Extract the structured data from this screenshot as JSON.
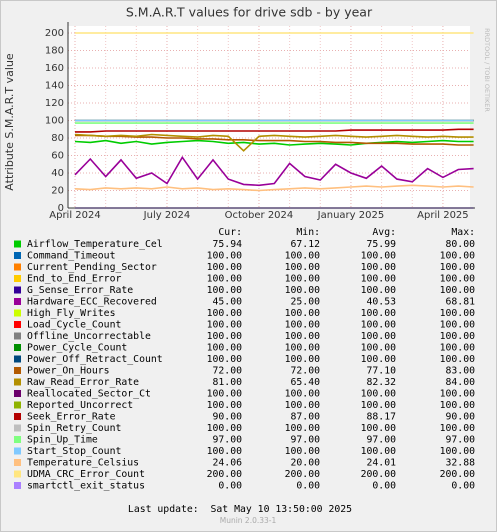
{
  "chart_data": {
    "type": "line",
    "title": "S.M.A.R.T values for drive sdb - by year",
    "y_label": "Attribute S.M.A.R.T value",
    "side_label": "RRDTOOL / TOBI OETIKER",
    "categories": [
      "April 2024",
      null,
      null,
      null,
      null,
      null,
      "July 2024",
      null,
      null,
      null,
      null,
      null,
      "October 2024",
      null,
      null,
      null,
      null,
      null,
      "January 2025",
      null,
      null,
      null,
      null,
      null,
      "April 2025",
      null,
      null
    ],
    "ylim": [
      0,
      208
    ],
    "yticks": [
      0,
      20,
      40,
      60,
      80,
      100,
      120,
      140,
      160,
      180,
      200
    ],
    "grid": true,
    "legend_columns": [
      "Cur:",
      "Min:",
      "Avg:",
      "Max:"
    ],
    "series": [
      {
        "name": "Airflow_Temperature_Cel",
        "color": "#00cc00",
        "stats": [
          "75.94",
          "67.12",
          "75.99",
          "80.00"
        ],
        "values": [
          76,
          75,
          77,
          74,
          76,
          73,
          75,
          76,
          77,
          76,
          74,
          75,
          73,
          74,
          72,
          73,
          74,
          73,
          72,
          74,
          75,
          76,
          75,
          76,
          77,
          76,
          76
        ]
      },
      {
        "name": "Command_Timeout",
        "color": "#0066b3",
        "stats": [
          "100.00",
          "100.00",
          "100.00",
          "100.00"
        ],
        "values": [
          100,
          100,
          100,
          100,
          100,
          100,
          100,
          100,
          100,
          100,
          100,
          100,
          100,
          100,
          100,
          100,
          100,
          100,
          100,
          100,
          100,
          100,
          100,
          100,
          100,
          100,
          100
        ]
      },
      {
        "name": "Current_Pending_Sector",
        "color": "#ff8000",
        "stats": [
          "100.00",
          "100.00",
          "100.00",
          "100.00"
        ],
        "values": [
          100,
          100,
          100,
          100,
          100,
          100,
          100,
          100,
          100,
          100,
          100,
          100,
          100,
          100,
          100,
          100,
          100,
          100,
          100,
          100,
          100,
          100,
          100,
          100,
          100,
          100,
          100
        ]
      },
      {
        "name": "End_to_End_Error",
        "color": "#ffcc00",
        "stats": [
          "100.00",
          "100.00",
          "100.00",
          "100.00"
        ],
        "values": [
          100,
          100,
          100,
          100,
          100,
          100,
          100,
          100,
          100,
          100,
          100,
          100,
          100,
          100,
          100,
          100,
          100,
          100,
          100,
          100,
          100,
          100,
          100,
          100,
          100,
          100,
          100
        ]
      },
      {
        "name": "G_Sense_Error_Rate",
        "color": "#330099",
        "stats": [
          "100.00",
          "100.00",
          "100.00",
          "100.00"
        ],
        "values": [
          100,
          100,
          100,
          100,
          100,
          100,
          100,
          100,
          100,
          100,
          100,
          100,
          100,
          100,
          100,
          100,
          100,
          100,
          100,
          100,
          100,
          100,
          100,
          100,
          100,
          100,
          100
        ]
      },
      {
        "name": "Hardware_ECC_Recovered",
        "color": "#990099",
        "stats": [
          "45.00",
          "25.00",
          "40.53",
          "68.81"
        ],
        "values": [
          38,
          56,
          36,
          55,
          34,
          40,
          28,
          58,
          33,
          55,
          33,
          27,
          26,
          28,
          51,
          36,
          32,
          50,
          40,
          34,
          48,
          33,
          30,
          45,
          35,
          44,
          45
        ]
      },
      {
        "name": "High_Fly_Writes",
        "color": "#ccff00",
        "stats": [
          "100.00",
          "100.00",
          "100.00",
          "100.00"
        ],
        "values": [
          100,
          100,
          100,
          100,
          100,
          100,
          100,
          100,
          100,
          100,
          100,
          100,
          100,
          100,
          100,
          100,
          100,
          100,
          100,
          100,
          100,
          100,
          100,
          100,
          100,
          100,
          100
        ]
      },
      {
        "name": "Load_Cycle_Count",
        "color": "#ff0000",
        "stats": [
          "100.00",
          "100.00",
          "100.00",
          "100.00"
        ],
        "values": [
          100,
          100,
          100,
          100,
          100,
          100,
          100,
          100,
          100,
          100,
          100,
          100,
          100,
          100,
          100,
          100,
          100,
          100,
          100,
          100,
          100,
          100,
          100,
          100,
          100,
          100,
          100
        ]
      },
      {
        "name": "Offline_Uncorrectable",
        "color": "#808080",
        "stats": [
          "100.00",
          "100.00",
          "100.00",
          "100.00"
        ],
        "values": [
          100,
          100,
          100,
          100,
          100,
          100,
          100,
          100,
          100,
          100,
          100,
          100,
          100,
          100,
          100,
          100,
          100,
          100,
          100,
          100,
          100,
          100,
          100,
          100,
          100,
          100,
          100
        ]
      },
      {
        "name": "Power_Cycle_Count",
        "color": "#008f00",
        "stats": [
          "100.00",
          "100.00",
          "100.00",
          "100.00"
        ],
        "values": [
          100,
          100,
          100,
          100,
          100,
          100,
          100,
          100,
          100,
          100,
          100,
          100,
          100,
          100,
          100,
          100,
          100,
          100,
          100,
          100,
          100,
          100,
          100,
          100,
          100,
          100,
          100
        ]
      },
      {
        "name": "Power_Off_Retract_Count",
        "color": "#00487d",
        "stats": [
          "100.00",
          "100.00",
          "100.00",
          "100.00"
        ],
        "values": [
          100,
          100,
          100,
          100,
          100,
          100,
          100,
          100,
          100,
          100,
          100,
          100,
          100,
          100,
          100,
          100,
          100,
          100,
          100,
          100,
          100,
          100,
          100,
          100,
          100,
          100,
          100
        ]
      },
      {
        "name": "Power_On_Hours",
        "color": "#b35a00",
        "stats": [
          "72.00",
          "72.00",
          "77.10",
          "83.00"
        ],
        "values": [
          83,
          83,
          82,
          82,
          81,
          81,
          80,
          80,
          79,
          79,
          78,
          78,
          77,
          77,
          77,
          76,
          76,
          75,
          75,
          74,
          74,
          74,
          73,
          73,
          73,
          72,
          72
        ]
      },
      {
        "name": "Raw_Read_Error_Rate",
        "color": "#b38f00",
        "stats": [
          "81.00",
          "65.40",
          "82.32",
          "84.00"
        ],
        "values": [
          84,
          83,
          82,
          83,
          82,
          84,
          83,
          82,
          81,
          83,
          82,
          65.4,
          82,
          83,
          82,
          81,
          82,
          83,
          82,
          81,
          82,
          83,
          82,
          81,
          82,
          81,
          81
        ]
      },
      {
        "name": "Reallocated_Sector_Ct",
        "color": "#6b006b",
        "stats": [
          "100.00",
          "100.00",
          "100.00",
          "100.00"
        ],
        "values": [
          100,
          100,
          100,
          100,
          100,
          100,
          100,
          100,
          100,
          100,
          100,
          100,
          100,
          100,
          100,
          100,
          100,
          100,
          100,
          100,
          100,
          100,
          100,
          100,
          100,
          100,
          100
        ]
      },
      {
        "name": "Reported_Uncorrect",
        "color": "#8fb300",
        "stats": [
          "100.00",
          "100.00",
          "100.00",
          "100.00"
        ],
        "values": [
          100,
          100,
          100,
          100,
          100,
          100,
          100,
          100,
          100,
          100,
          100,
          100,
          100,
          100,
          100,
          100,
          100,
          100,
          100,
          100,
          100,
          100,
          100,
          100,
          100,
          100,
          100
        ]
      },
      {
        "name": "Seek_Error_Rate",
        "color": "#b30000",
        "stats": [
          "90.00",
          "87.00",
          "88.17",
          "90.00"
        ],
        "values": [
          87,
          87,
          88,
          88,
          88,
          88,
          88,
          88,
          88,
          88,
          88,
          88,
          88,
          88,
          88,
          88,
          88,
          88,
          89,
          89,
          89,
          89,
          89,
          89,
          89,
          90,
          90
        ]
      },
      {
        "name": "Spin_Retry_Count",
        "color": "#bebebe",
        "stats": [
          "100.00",
          "100.00",
          "100.00",
          "100.00"
        ],
        "values": [
          100,
          100,
          100,
          100,
          100,
          100,
          100,
          100,
          100,
          100,
          100,
          100,
          100,
          100,
          100,
          100,
          100,
          100,
          100,
          100,
          100,
          100,
          100,
          100,
          100,
          100,
          100
        ]
      },
      {
        "name": "Spin_Up_Time",
        "color": "#80ff80",
        "stats": [
          "97.00",
          "97.00",
          "97.00",
          "97.00"
        ],
        "values": [
          97,
          97,
          97,
          97,
          97,
          97,
          97,
          97,
          97,
          97,
          97,
          97,
          97,
          97,
          97,
          97,
          97,
          97,
          97,
          97,
          97,
          97,
          97,
          97,
          97,
          97,
          97
        ]
      },
      {
        "name": "Start_Stop_Count",
        "color": "#80c9ff",
        "stats": [
          "100.00",
          "100.00",
          "100.00",
          "100.00"
        ],
        "values": [
          100,
          100,
          100,
          100,
          100,
          100,
          100,
          100,
          100,
          100,
          100,
          100,
          100,
          100,
          100,
          100,
          100,
          100,
          100,
          100,
          100,
          100,
          100,
          100,
          100,
          100,
          100
        ]
      },
      {
        "name": "Temperature_Celsius",
        "color": "#ffc080",
        "stats": [
          "24.06",
          "20.00",
          "24.01",
          "32.88"
        ],
        "values": [
          22,
          21,
          23,
          22,
          23,
          22,
          24,
          22,
          23,
          21,
          22,
          21,
          20,
          21,
          22,
          23,
          22,
          23,
          24,
          25,
          24,
          25,
          26,
          25,
          24,
          25,
          24
        ]
      },
      {
        "name": "UDMA_CRC_Error_Count",
        "color": "#ffe680",
        "stats": [
          "200.00",
          "200.00",
          "200.00",
          "200.00"
        ],
        "values": [
          200,
          200,
          200,
          200,
          200,
          200,
          200,
          200,
          200,
          200,
          200,
          200,
          200,
          200,
          200,
          200,
          200,
          200,
          200,
          200,
          200,
          200,
          200,
          200,
          200,
          200,
          200
        ]
      },
      {
        "name": "smartctl_exit_status",
        "color": "#aa80ff",
        "stats": [
          "0.00",
          "0.00",
          "0.00",
          "0.00"
        ],
        "values": [
          0,
          0,
          0,
          0,
          0,
          0,
          0,
          0,
          0,
          0,
          0,
          0,
          0,
          0,
          0,
          0,
          0,
          0,
          0,
          0,
          0,
          0,
          0,
          0,
          0,
          0,
          0
        ]
      }
    ],
    "last_update": "Last update:  Sat May 10 13:50:00 2025",
    "footer": "Munin 2.0.33-1"
  }
}
